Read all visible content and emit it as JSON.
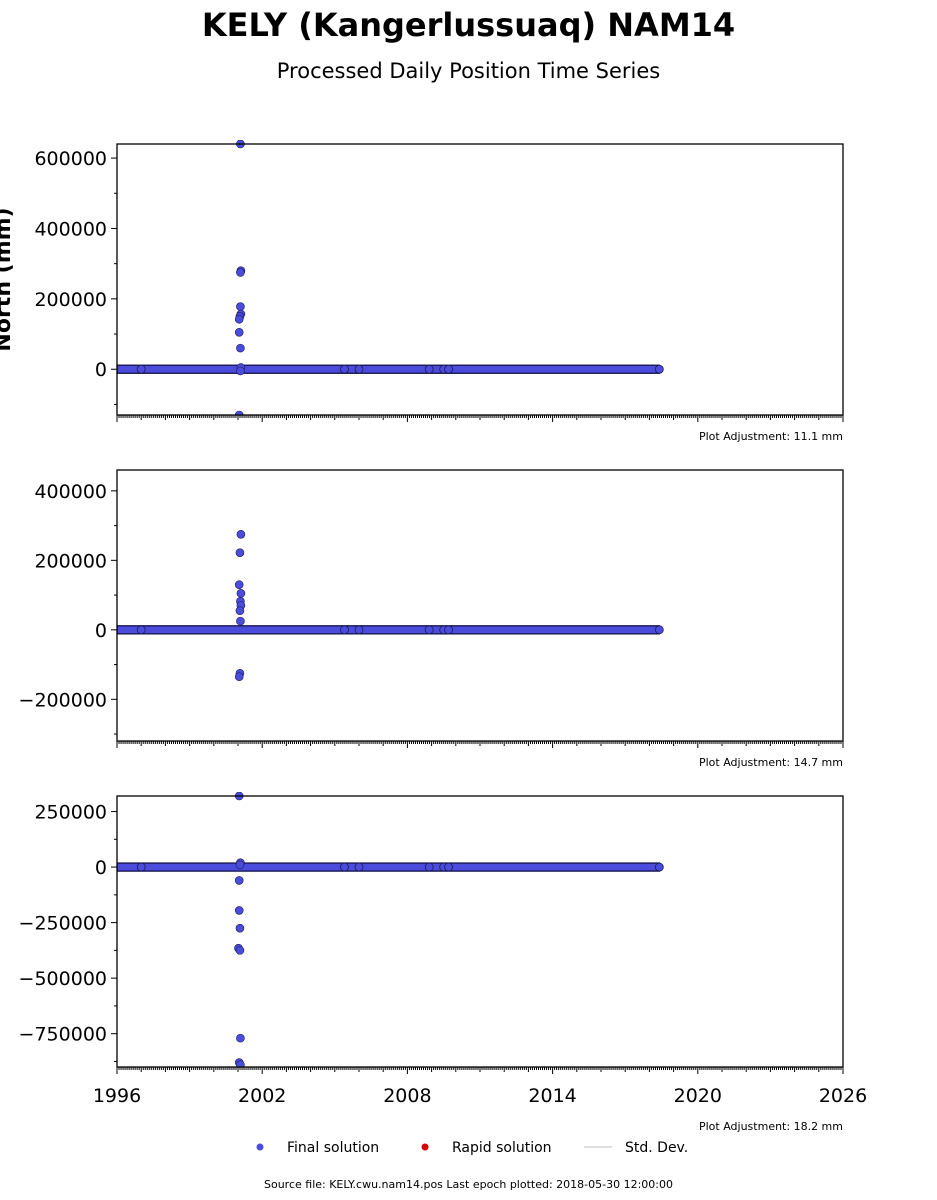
{
  "title": "KELY (Kangerlussuaq) NAM14",
  "subtitle": "Processed Daily Position Time Series",
  "footer": "Source file: KELY.cwu.nam14.pos  Last epoch plotted: 2018-05-30 12:00:00",
  "legend": [
    {
      "label": "Final solution",
      "color": "#4b4bdc",
      "kind": "marker"
    },
    {
      "label": "Rapid solution",
      "color": "#dd0000",
      "kind": "marker"
    },
    {
      "label": "Std. Dev.",
      "color": "#cccccc",
      "kind": "line"
    }
  ],
  "chart_data": [
    {
      "type": "scatter",
      "ylabel": "North (mm)",
      "xlim": [
        1996,
        2026
      ],
      "ylim": [
        -130000,
        640000
      ],
      "yticks": [
        0,
        200000,
        400000,
        600000
      ],
      "xticks": [
        1996,
        2002,
        2008,
        2014,
        2020,
        2026
      ],
      "show_xtick_labels": false,
      "plot_adjustment": "Plot Adjustment: 11.1 mm",
      "baseline": {
        "x_start": 1996.0,
        "x_end": 2018.41,
        "y": 0
      },
      "outliers": [
        {
          "x": 2001.1,
          "y": 640000
        },
        {
          "x": 2001.12,
          "y": 280000
        },
        {
          "x": 2001.1,
          "y": 275000
        },
        {
          "x": 2001.1,
          "y": 178000
        },
        {
          "x": 2001.12,
          "y": 157000
        },
        {
          "x": 2001.08,
          "y": 150000
        },
        {
          "x": 2001.05,
          "y": 142000
        },
        {
          "x": 2001.05,
          "y": 105000
        },
        {
          "x": 2001.1,
          "y": 60000
        },
        {
          "x": 2001.12,
          "y": 5000
        },
        {
          "x": 2001.1,
          "y": -5000
        },
        {
          "x": 2001.05,
          "y": -130000
        }
      ],
      "gap_markers": [
        {
          "x": 1997.0,
          "y": 0
        },
        {
          "x": 2005.4,
          "y": 0
        },
        {
          "x": 2006.0,
          "y": 0
        },
        {
          "x": 2008.9,
          "y": 0
        },
        {
          "x": 2009.5,
          "y": 0
        },
        {
          "x": 2009.7,
          "y": 0
        },
        {
          "x": 2018.41,
          "y": 0
        }
      ]
    },
    {
      "type": "scatter",
      "ylabel": "",
      "xlim": [
        1996,
        2026
      ],
      "ylim": [
        -320000,
        460000
      ],
      "yticks": [
        -200000,
        0,
        200000,
        400000
      ],
      "xticks": [
        1996,
        2002,
        2008,
        2014,
        2020,
        2026
      ],
      "show_xtick_labels": false,
      "plot_adjustment": "Plot Adjustment: 14.7 mm",
      "baseline": {
        "x_start": 1996.0,
        "x_end": 2018.41,
        "y": 0
      },
      "outliers": [
        {
          "x": 2001.12,
          "y": 275000
        },
        {
          "x": 2001.08,
          "y": 222000
        },
        {
          "x": 2001.05,
          "y": 130000
        },
        {
          "x": 2001.12,
          "y": 105000
        },
        {
          "x": 2001.1,
          "y": 82000
        },
        {
          "x": 2001.12,
          "y": 70000
        },
        {
          "x": 2001.08,
          "y": 55000
        },
        {
          "x": 2001.1,
          "y": 25000
        },
        {
          "x": 2001.08,
          "y": -125000
        },
        {
          "x": 2001.05,
          "y": -135000
        }
      ],
      "gap_markers": [
        {
          "x": 1997.0,
          "y": 0
        },
        {
          "x": 2005.4,
          "y": 0
        },
        {
          "x": 2006.0,
          "y": 0
        },
        {
          "x": 2008.9,
          "y": 0
        },
        {
          "x": 2009.5,
          "y": 0
        },
        {
          "x": 2009.7,
          "y": 0
        },
        {
          "x": 2018.41,
          "y": 0
        }
      ]
    },
    {
      "type": "scatter",
      "ylabel": "",
      "xlim": [
        1996,
        2026
      ],
      "ylim": [
        -900000,
        320000
      ],
      "yticks": [
        -750000,
        -500000,
        -250000,
        0,
        250000
      ],
      "xticks": [
        1996,
        2002,
        2008,
        2014,
        2020,
        2026
      ],
      "show_xtick_labels": true,
      "plot_adjustment": "Plot Adjustment: 18.2 mm",
      "baseline": {
        "x_start": 1996.0,
        "x_end": 2018.41,
        "y": 0
      },
      "outliers": [
        {
          "x": 2001.05,
          "y": 320000
        },
        {
          "x": 2001.1,
          "y": 20000
        },
        {
          "x": 2001.08,
          "y": 10000
        },
        {
          "x": 2001.05,
          "y": -60000
        },
        {
          "x": 2001.05,
          "y": -195000
        },
        {
          "x": 2001.08,
          "y": -275000
        },
        {
          "x": 2001.02,
          "y": -365000
        },
        {
          "x": 2001.08,
          "y": -375000
        },
        {
          "x": 2001.1,
          "y": -770000
        },
        {
          "x": 2001.05,
          "y": -880000
        },
        {
          "x": 2001.1,
          "y": -890000
        }
      ],
      "gap_markers": [
        {
          "x": 1997.0,
          "y": 0
        },
        {
          "x": 2005.4,
          "y": 0
        },
        {
          "x": 2006.0,
          "y": 0
        },
        {
          "x": 2008.9,
          "y": 0
        },
        {
          "x": 2009.5,
          "y": 0
        },
        {
          "x": 2009.7,
          "y": 0
        },
        {
          "x": 2018.41,
          "y": 0
        }
      ]
    }
  ]
}
